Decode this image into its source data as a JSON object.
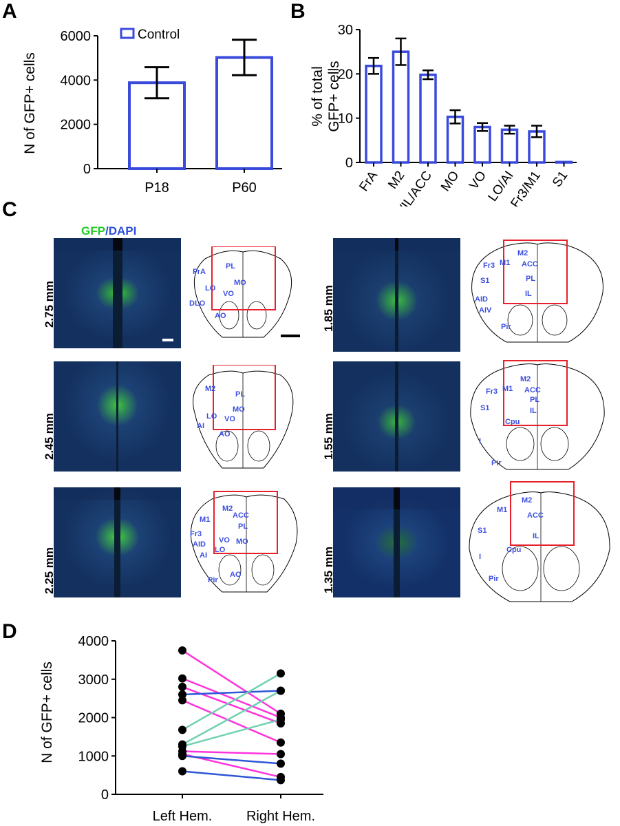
{
  "panels": {
    "a": "A",
    "b": "B",
    "c": "C",
    "d": "D"
  },
  "colors": {
    "bar": "#3a4bdc",
    "gfp": "#22cc22",
    "dapi": "#2a4fd8",
    "box": "#e8202a",
    "line_magenta": "#ff33dd",
    "line_teal": "#6fd1b0",
    "line_blue": "#2f56d6"
  },
  "chart_data": [
    {
      "panel": "A",
      "type": "bar",
      "categories": [
        "P18",
        "P60"
      ],
      "values": [
        3880,
        5020
      ],
      "errors": [
        700,
        800
      ],
      "ylabel": "N of GFP+ cells",
      "ylim": [
        0,
        6000
      ],
      "yticks": [
        "0",
        "2000",
        "4000",
        "6000"
      ],
      "legend": "Control",
      "legend_position": "top-left"
    },
    {
      "panel": "B",
      "type": "bar",
      "categories": [
        "FrA",
        "M2",
        "PL/IL/ACC",
        "MO",
        "VO",
        "LO/AI",
        "Fr3/M1",
        "S1"
      ],
      "values": [
        21.8,
        25.0,
        19.8,
        10.3,
        8.0,
        7.4,
        7.0,
        0.1
      ],
      "errors": [
        1.8,
        3.0,
        1.0,
        1.5,
        0.9,
        0.9,
        1.3,
        0.0
      ],
      "ylabel_line1": "% of total",
      "ylabel_line2": "GFP+ cells",
      "ylim": [
        0,
        30
      ],
      "yticks": [
        "0",
        "10",
        "20",
        "30"
      ]
    },
    {
      "panel": "D",
      "type": "line",
      "categories": [
        "Left Hem.",
        "Right Hem."
      ],
      "ylabel": "N of GFP+ cells",
      "ylim": [
        0,
        4000
      ],
      "yticks": [
        "0",
        "1000",
        "2000",
        "3000",
        "4000"
      ],
      "pairs": [
        {
          "left": 3750,
          "right": 2100,
          "color": "magenta"
        },
        {
          "left": 3020,
          "right": 2000,
          "color": "magenta"
        },
        {
          "left": 2800,
          "right": 1850,
          "color": "magenta"
        },
        {
          "left": 2600,
          "right": 2700,
          "color": "blue"
        },
        {
          "left": 2450,
          "right": 1350,
          "color": "magenta"
        },
        {
          "left": 1680,
          "right": 3150,
          "color": "teal"
        },
        {
          "left": 1300,
          "right": 2700,
          "color": "teal"
        },
        {
          "left": 1250,
          "right": 1950,
          "color": "teal"
        },
        {
          "left": 1120,
          "right": 1050,
          "color": "magenta"
        },
        {
          "left": 1050,
          "right": 450,
          "color": "magenta"
        },
        {
          "left": 1000,
          "right": 800,
          "color": "blue"
        },
        {
          "left": 600,
          "right": 370,
          "color": "blue"
        }
      ]
    }
  ],
  "panel_c": {
    "stain_label_gfp": "GFP",
    "stain_label_sep": "/",
    "stain_label_dapi": "DAPI",
    "sections": [
      {
        "depth": "2.75 mm",
        "regions": [
          "FrA",
          "PL",
          "MO",
          "LO",
          "VO",
          "DLO",
          "AO"
        ]
      },
      {
        "depth": "2.45 mm",
        "regions": [
          "M2",
          "PL",
          "MO",
          "LO",
          "VO",
          "AI",
          "AO"
        ]
      },
      {
        "depth": "2.25 mm",
        "regions": [
          "M2",
          "ACC",
          "M1",
          "PL",
          "Fr3",
          "VO",
          "MO",
          "AID",
          "LO",
          "AI",
          "Pir",
          "AO"
        ]
      },
      {
        "depth": "1.85 mm",
        "regions": [
          "M2",
          "Fr3",
          "M1",
          "ACC",
          "S1",
          "PL",
          "IL",
          "AID",
          "AIV",
          "Pir"
        ]
      },
      {
        "depth": "1.55 mm",
        "regions": [
          "M2",
          "Fr3",
          "M1",
          "ACC",
          "PL",
          "S1",
          "IL",
          "Cpu",
          "I",
          "Pir"
        ]
      },
      {
        "depth": "1.35 mm",
        "regions": [
          "M2",
          "M1",
          "ACC",
          "S1",
          "IL",
          "Cpu",
          "I",
          "Pir"
        ]
      }
    ]
  }
}
